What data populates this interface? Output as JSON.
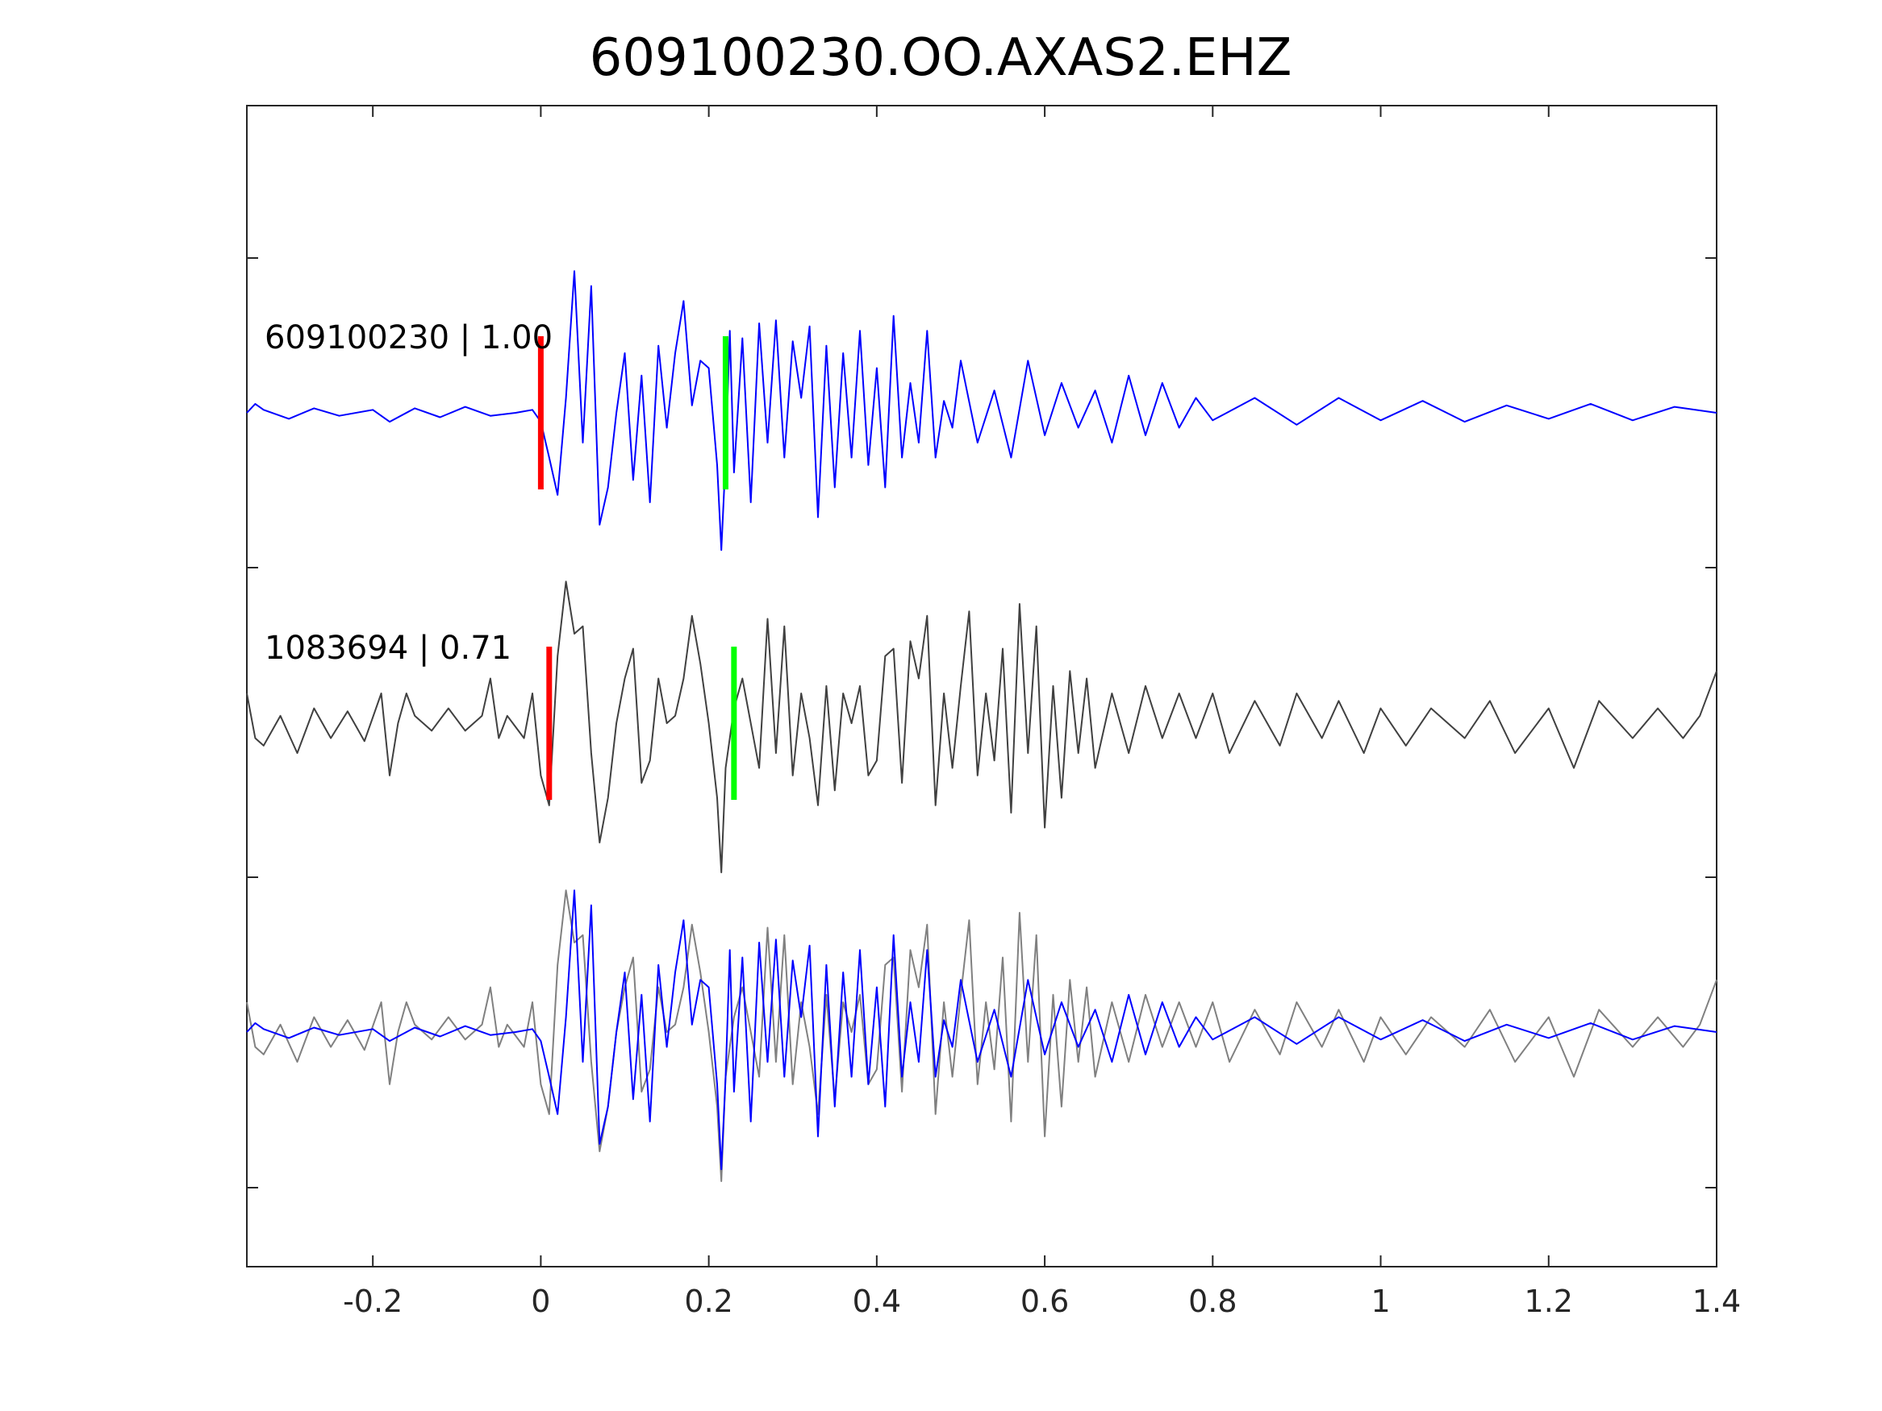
{
  "chart_data": {
    "type": "line",
    "title": "609100230.OO.AXAS2.EHZ",
    "xlabel": "",
    "ylabel": "",
    "xlim": [
      -0.35,
      1.4
    ],
    "x_ticks": [
      -0.2,
      0,
      0.2,
      0.4,
      0.6,
      0.8,
      1,
      1.2,
      1.4
    ],
    "x_tick_labels": [
      "-0.2",
      "0",
      "0.2",
      "0.4",
      "0.6",
      "0.8",
      "1",
      "1.2",
      "1.4"
    ],
    "y_ticks_labeled": false,
    "grid": false,
    "legend": "none",
    "colors": {
      "template": "#0000ff",
      "detection": "#404040",
      "overlay_detection": "#808080",
      "p_pick": "#ff0000",
      "s_pick": "#00ff00"
    },
    "traces": [
      {
        "label": "609100230 | 1.00",
        "color": "#0000ff",
        "p_pick_time": 0.0,
        "s_pick_time": 0.22,
        "points": [
          [
            -0.35,
            0.0
          ],
          [
            -0.34,
            0.06
          ],
          [
            -0.33,
            0.02
          ],
          [
            -0.3,
            -0.04
          ],
          [
            -0.27,
            0.03
          ],
          [
            -0.24,
            -0.02
          ],
          [
            -0.2,
            0.02
          ],
          [
            -0.18,
            -0.06
          ],
          [
            -0.15,
            0.03
          ],
          [
            -0.12,
            -0.03
          ],
          [
            -0.09,
            0.04
          ],
          [
            -0.06,
            -0.02
          ],
          [
            -0.03,
            0.0
          ],
          [
            -0.01,
            0.02
          ],
          [
            0.0,
            -0.06
          ],
          [
            0.01,
            -0.3
          ],
          [
            0.02,
            -0.55
          ],
          [
            0.03,
            0.1
          ],
          [
            0.04,
            0.95
          ],
          [
            0.05,
            -0.2
          ],
          [
            0.06,
            0.85
          ],
          [
            0.07,
            -0.75
          ],
          [
            0.08,
            -0.5
          ],
          [
            0.09,
            0.0
          ],
          [
            0.1,
            0.4
          ],
          [
            0.11,
            -0.45
          ],
          [
            0.12,
            0.25
          ],
          [
            0.13,
            -0.6
          ],
          [
            0.14,
            0.45
          ],
          [
            0.15,
            -0.1
          ],
          [
            0.16,
            0.4
          ],
          [
            0.17,
            0.75
          ],
          [
            0.18,
            0.05
          ],
          [
            0.19,
            0.35
          ],
          [
            0.2,
            0.3
          ],
          [
            0.21,
            -0.35
          ],
          [
            0.215,
            -0.92
          ],
          [
            0.22,
            -0.3
          ],
          [
            0.225,
            0.55
          ],
          [
            0.23,
            -0.4
          ],
          [
            0.24,
            0.5
          ],
          [
            0.25,
            -0.6
          ],
          [
            0.26,
            0.6
          ],
          [
            0.27,
            -0.2
          ],
          [
            0.28,
            0.62
          ],
          [
            0.29,
            -0.3
          ],
          [
            0.3,
            0.48
          ],
          [
            0.31,
            0.1
          ],
          [
            0.32,
            0.58
          ],
          [
            0.33,
            -0.7
          ],
          [
            0.34,
            0.45
          ],
          [
            0.35,
            -0.5
          ],
          [
            0.36,
            0.4
          ],
          [
            0.37,
            -0.3
          ],
          [
            0.38,
            0.55
          ],
          [
            0.39,
            -0.35
          ],
          [
            0.4,
            0.3
          ],
          [
            0.41,
            -0.5
          ],
          [
            0.42,
            0.65
          ],
          [
            0.43,
            -0.3
          ],
          [
            0.44,
            0.2
          ],
          [
            0.45,
            -0.2
          ],
          [
            0.46,
            0.55
          ],
          [
            0.47,
            -0.3
          ],
          [
            0.48,
            0.08
          ],
          [
            0.49,
            -0.1
          ],
          [
            0.5,
            0.35
          ],
          [
            0.52,
            -0.2
          ],
          [
            0.54,
            0.15
          ],
          [
            0.56,
            -0.3
          ],
          [
            0.58,
            0.35
          ],
          [
            0.6,
            -0.15
          ],
          [
            0.62,
            0.2
          ],
          [
            0.64,
            -0.1
          ],
          [
            0.66,
            0.15
          ],
          [
            0.68,
            -0.2
          ],
          [
            0.7,
            0.25
          ],
          [
            0.72,
            -0.15
          ],
          [
            0.74,
            0.2
          ],
          [
            0.76,
            -0.1
          ],
          [
            0.78,
            0.1
          ],
          [
            0.8,
            -0.05
          ],
          [
            0.85,
            0.1
          ],
          [
            0.9,
            -0.08
          ],
          [
            0.95,
            0.1
          ],
          [
            1.0,
            -0.05
          ],
          [
            1.05,
            0.08
          ],
          [
            1.1,
            -0.06
          ],
          [
            1.15,
            0.05
          ],
          [
            1.2,
            -0.04
          ],
          [
            1.25,
            0.06
          ],
          [
            1.3,
            -0.05
          ],
          [
            1.35,
            0.04
          ],
          [
            1.4,
            0.0
          ]
        ]
      },
      {
        "label": "1083694 | 0.71",
        "color": "#404040",
        "p_pick_time": 0.01,
        "s_pick_time": 0.23,
        "points": [
          [
            -0.35,
            0.2
          ],
          [
            -0.34,
            -0.1
          ],
          [
            -0.33,
            -0.15
          ],
          [
            -0.31,
            0.05
          ],
          [
            -0.29,
            -0.2
          ],
          [
            -0.27,
            0.1
          ],
          [
            -0.25,
            -0.1
          ],
          [
            -0.23,
            0.08
          ],
          [
            -0.21,
            -0.12
          ],
          [
            -0.19,
            0.2
          ],
          [
            -0.18,
            -0.35
          ],
          [
            -0.17,
            0.0
          ],
          [
            -0.16,
            0.2
          ],
          [
            -0.15,
            0.05
          ],
          [
            -0.13,
            -0.05
          ],
          [
            -0.11,
            0.1
          ],
          [
            -0.09,
            -0.05
          ],
          [
            -0.07,
            0.05
          ],
          [
            -0.06,
            0.3
          ],
          [
            -0.05,
            -0.1
          ],
          [
            -0.04,
            0.05
          ],
          [
            -0.02,
            -0.1
          ],
          [
            -0.01,
            0.2
          ],
          [
            0.0,
            -0.35
          ],
          [
            0.01,
            -0.55
          ],
          [
            0.02,
            0.45
          ],
          [
            0.03,
            0.95
          ],
          [
            0.04,
            0.6
          ],
          [
            0.05,
            0.65
          ],
          [
            0.06,
            -0.2
          ],
          [
            0.07,
            -0.8
          ],
          [
            0.08,
            -0.5
          ],
          [
            0.09,
            0.0
          ],
          [
            0.1,
            0.3
          ],
          [
            0.11,
            0.5
          ],
          [
            0.12,
            -0.4
          ],
          [
            0.13,
            -0.25
          ],
          [
            0.14,
            0.3
          ],
          [
            0.15,
            0.0
          ],
          [
            0.16,
            0.05
          ],
          [
            0.17,
            0.3
          ],
          [
            0.18,
            0.72
          ],
          [
            0.19,
            0.4
          ],
          [
            0.2,
            0.0
          ],
          [
            0.21,
            -0.5
          ],
          [
            0.215,
            -1.0
          ],
          [
            0.22,
            -0.3
          ],
          [
            0.23,
            0.1
          ],
          [
            0.24,
            0.3
          ],
          [
            0.25,
            0.0
          ],
          [
            0.26,
            -0.3
          ],
          [
            0.27,
            0.7
          ],
          [
            0.28,
            -0.2
          ],
          [
            0.29,
            0.65
          ],
          [
            0.3,
            -0.35
          ],
          [
            0.31,
            0.2
          ],
          [
            0.32,
            -0.1
          ],
          [
            0.33,
            -0.55
          ],
          [
            0.34,
            0.25
          ],
          [
            0.35,
            -0.45
          ],
          [
            0.36,
            0.2
          ],
          [
            0.37,
            0.0
          ],
          [
            0.38,
            0.25
          ],
          [
            0.39,
            -0.35
          ],
          [
            0.4,
            -0.25
          ],
          [
            0.41,
            0.45
          ],
          [
            0.42,
            0.5
          ],
          [
            0.43,
            -0.4
          ],
          [
            0.44,
            0.55
          ],
          [
            0.45,
            0.3
          ],
          [
            0.46,
            0.72
          ],
          [
            0.47,
            -0.55
          ],
          [
            0.48,
            0.2
          ],
          [
            0.49,
            -0.3
          ],
          [
            0.5,
            0.25
          ],
          [
            0.51,
            0.75
          ],
          [
            0.52,
            -0.35
          ],
          [
            0.53,
            0.2
          ],
          [
            0.54,
            -0.25
          ],
          [
            0.55,
            0.5
          ],
          [
            0.56,
            -0.6
          ],
          [
            0.57,
            0.8
          ],
          [
            0.58,
            -0.2
          ],
          [
            0.59,
            0.65
          ],
          [
            0.6,
            -0.7
          ],
          [
            0.61,
            0.25
          ],
          [
            0.62,
            -0.5
          ],
          [
            0.63,
            0.35
          ],
          [
            0.64,
            -0.2
          ],
          [
            0.65,
            0.3
          ],
          [
            0.66,
            -0.3
          ],
          [
            0.68,
            0.2
          ],
          [
            0.7,
            -0.2
          ],
          [
            0.72,
            0.25
          ],
          [
            0.74,
            -0.1
          ],
          [
            0.76,
            0.2
          ],
          [
            0.78,
            -0.1
          ],
          [
            0.8,
            0.2
          ],
          [
            0.82,
            -0.2
          ],
          [
            0.85,
            0.15
          ],
          [
            0.88,
            -0.15
          ],
          [
            0.9,
            0.2
          ],
          [
            0.93,
            -0.1
          ],
          [
            0.95,
            0.15
          ],
          [
            0.98,
            -0.2
          ],
          [
            1.0,
            0.1
          ],
          [
            1.03,
            -0.15
          ],
          [
            1.06,
            0.1
          ],
          [
            1.1,
            -0.1
          ],
          [
            1.13,
            0.15
          ],
          [
            1.16,
            -0.2
          ],
          [
            1.2,
            0.1
          ],
          [
            1.23,
            -0.3
          ],
          [
            1.26,
            0.15
          ],
          [
            1.3,
            -0.1
          ],
          [
            1.33,
            0.1
          ],
          [
            1.36,
            -0.1
          ],
          [
            1.38,
            0.05
          ],
          [
            1.4,
            0.35
          ]
        ]
      }
    ],
    "overlay_traces": [
      "template",
      "detection"
    ]
  }
}
